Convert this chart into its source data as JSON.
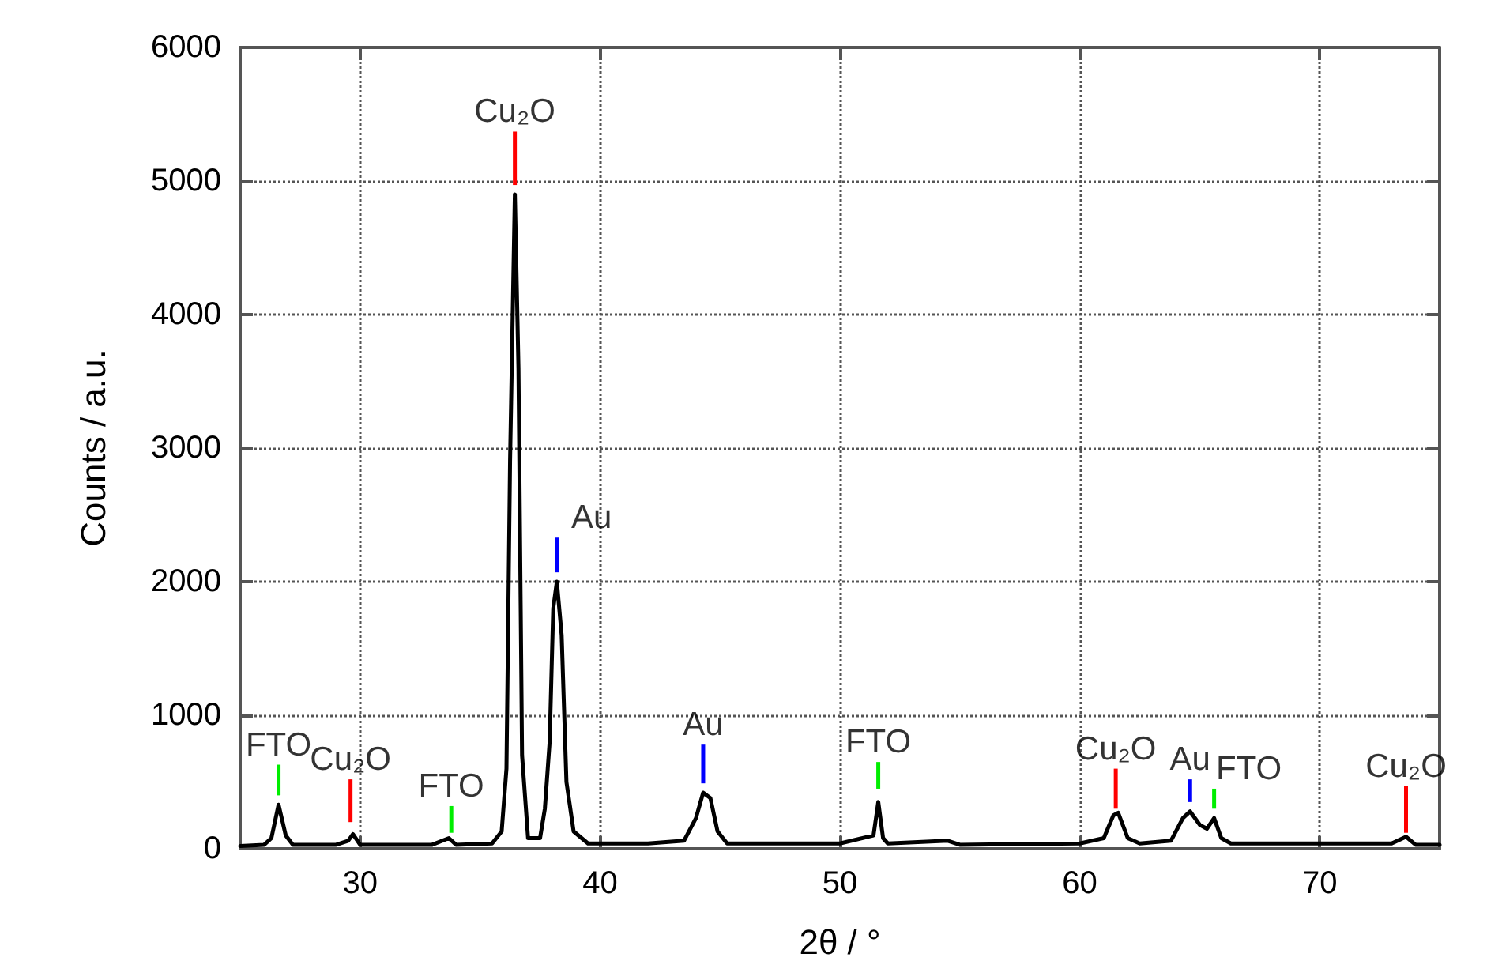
{
  "chart_data": {
    "type": "line",
    "xlabel": "2θ / °",
    "ylabel": "Counts / a.u.",
    "xlim": [
      25,
      75
    ],
    "xticks": [
      30,
      40,
      50,
      60,
      70
    ],
    "ylim": [
      0,
      6000
    ],
    "yticks": [
      0,
      1000,
      2000,
      3000,
      4000,
      5000,
      6000
    ],
    "grid": true,
    "marker": "none",
    "line_style": "solid",
    "series": [
      {
        "color": "#000000",
        "x": [
          25,
          26,
          26.3,
          26.6,
          26.9,
          27.2,
          29,
          29.5,
          29.7,
          30,
          33,
          33.7,
          34,
          35.5,
          35.9,
          36.1,
          36.25,
          36.45,
          36.6,
          36.75,
          37,
          37.5,
          37.7,
          37.9,
          38.05,
          38.2,
          38.4,
          38.6,
          38.9,
          39.5,
          42,
          43.5,
          44,
          44.3,
          44.6,
          44.9,
          45.3,
          50,
          51.4,
          51.6,
          51.8,
          52,
          54.5,
          55,
          60,
          61,
          61.4,
          61.6,
          62,
          62.5,
          63.8,
          64.3,
          64.6,
          65,
          65.3,
          65.6,
          65.9,
          66.3,
          73,
          73.6,
          74,
          75
        ],
        "values": [
          20,
          30,
          80,
          330,
          100,
          30,
          30,
          60,
          110,
          30,
          30,
          80,
          30,
          40,
          130,
          600,
          2900,
          4900,
          3600,
          700,
          80,
          80,
          300,
          800,
          1800,
          2000,
          1600,
          500,
          130,
          40,
          40,
          60,
          230,
          420,
          380,
          130,
          40,
          40,
          100,
          350,
          80,
          40,
          60,
          30,
          40,
          80,
          250,
          270,
          80,
          40,
          60,
          230,
          280,
          180,
          150,
          230,
          80,
          40,
          40,
          90,
          30,
          30
        ]
      },
      {
        "type": "bar",
        "color": "#ff0000",
        "x": [
          29.6,
          36.45,
          61.5,
          73.6
        ],
        "base": [
          200,
          4970,
          300,
          120
        ],
        "values": [
          320,
          400,
          300,
          350
        ]
      },
      {
        "type": "bar",
        "color": "#00ee00",
        "x": [
          26.6,
          33.8,
          51.6,
          65.6
        ],
        "base": [
          400,
          120,
          450,
          300
        ],
        "values": [
          230,
          200,
          200,
          150
        ]
      },
      {
        "type": "bar",
        "color": "#0000ff",
        "x": [
          38.2,
          44.3,
          64.6
        ],
        "base": [
          2070,
          490,
          350
        ],
        "values": [
          260,
          290,
          170
        ]
      }
    ],
    "annotations": [
      {
        "text": "FTO",
        "x": 26.6,
        "y": 630
      },
      {
        "text": "Cu₂O",
        "x": 29.6,
        "y": 520
      },
      {
        "text": "FTO",
        "x": 33.8,
        "y": 320
      },
      {
        "text": "Cu₂O",
        "x": 36.45,
        "y": 5370
      },
      {
        "text": "Au",
        "x": 38.2,
        "y": 2330
      },
      {
        "text": "Au",
        "x": 44.3,
        "y": 780
      },
      {
        "text": "FTO",
        "x": 51.6,
        "y": 650
      },
      {
        "text": "Cu₂O",
        "x": 61.5,
        "y": 600
      },
      {
        "text": "Au",
        "x": 64.6,
        "y": 520
      },
      {
        "text": "FTO",
        "x": 65.6,
        "y": 450
      },
      {
        "text": "Cu₂O",
        "x": 73.6,
        "y": 470
      }
    ]
  }
}
